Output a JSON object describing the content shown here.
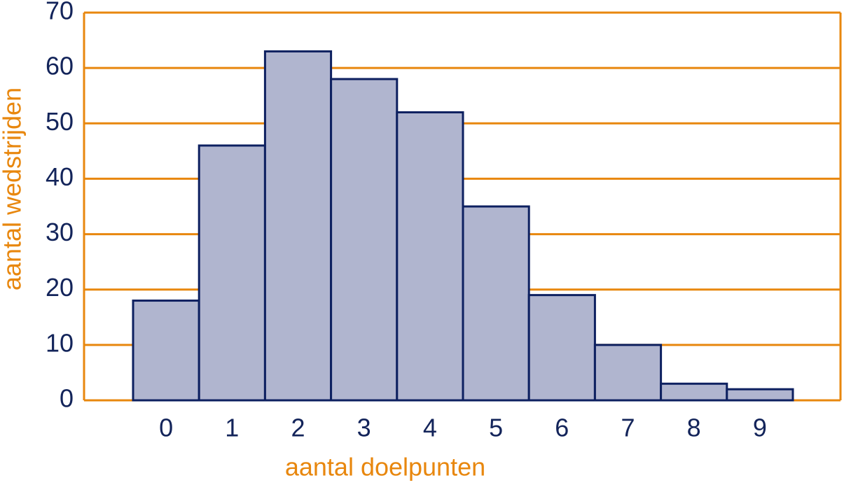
{
  "chart_data": {
    "type": "bar",
    "x_label": "aantal doelpunten",
    "y_label": "aantal wedstrijden",
    "categories": [
      "0",
      "1",
      "2",
      "3",
      "4",
      "5",
      "6",
      "7",
      "8",
      "9"
    ],
    "values": [
      18,
      46,
      63,
      58,
      52,
      35,
      19,
      10,
      3,
      2
    ],
    "color": "#b0b5cf",
    "edge_color": "#0d2060",
    "grid_color": "#e8870e",
    "ylim": [
      0,
      70
    ],
    "yticks": [
      0,
      10,
      20,
      30,
      40,
      50,
      60,
      70
    ],
    "grid": true
  }
}
